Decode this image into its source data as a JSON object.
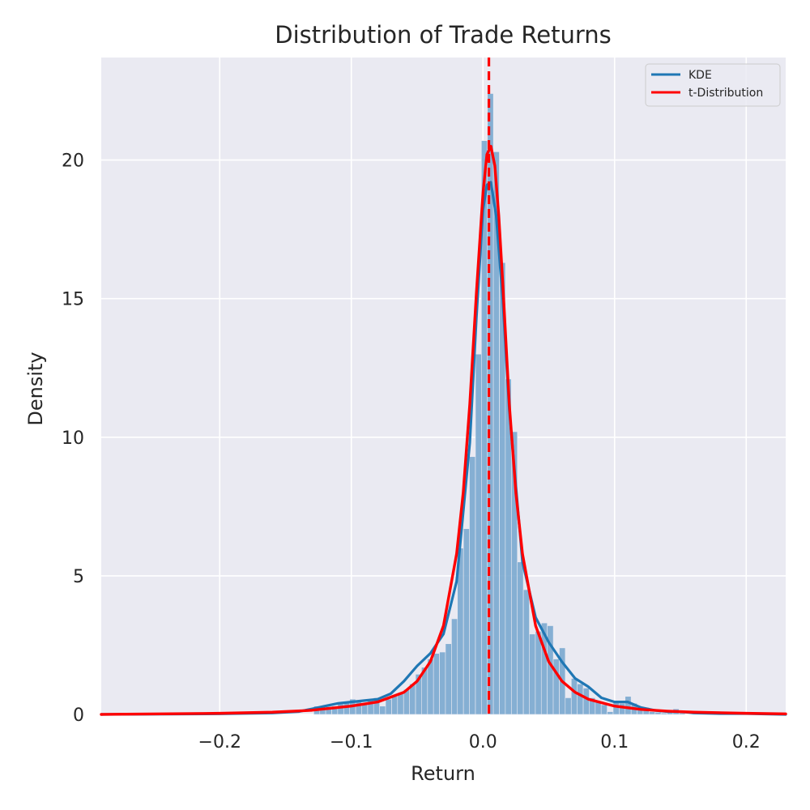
{
  "chart_data": {
    "type": "bar",
    "title": "Distribution of Trade Returns",
    "xlabel": "Return",
    "ylabel": "Density",
    "xlim": [
      -0.29,
      0.23
    ],
    "ylim": [
      0,
      23.7
    ],
    "x_ticks": [
      -0.2,
      -0.1,
      0.0,
      0.1,
      0.2
    ],
    "x_tick_labels": [
      "−0.2",
      "−0.1",
      "0.0",
      "0.1",
      "0.2"
    ],
    "y_ticks": [
      0,
      5,
      10,
      15,
      20
    ],
    "y_tick_labels": [
      "0",
      "5",
      "10",
      "15",
      "20"
    ],
    "grid": true,
    "legend_position": "top-right",
    "histogram": {
      "bin_width": 0.00455,
      "bins": [
        [
          -0.1285,
          0.3
        ],
        [
          -0.124,
          0.25
        ],
        [
          -0.1195,
          0.28
        ],
        [
          -0.1149,
          0.3
        ],
        [
          -0.1104,
          0.38
        ],
        [
          -0.1058,
          0.42
        ],
        [
          -0.1013,
          0.55
        ],
        [
          -0.0967,
          0.5
        ],
        [
          -0.0922,
          0.42
        ],
        [
          -0.0876,
          0.55
        ],
        [
          -0.0831,
          0.6
        ],
        [
          -0.0785,
          0.3
        ],
        [
          -0.074,
          0.55
        ],
        [
          -0.0694,
          0.65
        ],
        [
          -0.0649,
          0.75
        ],
        [
          -0.0603,
          0.9
        ],
        [
          -0.0558,
          1.1
        ],
        [
          -0.0512,
          1.45
        ],
        [
          -0.0467,
          1.7
        ],
        [
          -0.0421,
          2.0
        ],
        [
          -0.0376,
          2.2
        ],
        [
          -0.033,
          2.25
        ],
        [
          -0.0285,
          2.55
        ],
        [
          -0.0239,
          3.45
        ],
        [
          -0.0194,
          6.0
        ],
        [
          -0.0148,
          6.7
        ],
        [
          -0.0103,
          9.3
        ],
        [
          -0.0057,
          13.0
        ],
        [
          -0.0012,
          20.7
        ],
        [
          0.0034,
          22.4
        ],
        [
          0.0079,
          20.3
        ],
        [
          0.0125,
          16.3
        ],
        [
          0.017,
          12.1
        ],
        [
          0.0216,
          10.2
        ],
        [
          0.0261,
          5.5
        ],
        [
          0.0307,
          4.5
        ],
        [
          0.0352,
          2.9
        ],
        [
          0.0398,
          3.0
        ],
        [
          0.0443,
          3.3
        ],
        [
          0.0489,
          3.2
        ],
        [
          0.0534,
          2.0
        ],
        [
          0.058,
          2.4
        ],
        [
          0.0625,
          0.6
        ],
        [
          0.0671,
          1.3
        ],
        [
          0.0716,
          1.1
        ],
        [
          0.0762,
          0.95
        ],
        [
          0.0807,
          0.6
        ],
        [
          0.0853,
          0.45
        ],
        [
          0.0898,
          0.35
        ],
        [
          0.0944,
          0.1
        ],
        [
          0.0989,
          0.45
        ],
        [
          0.1035,
          0.4
        ],
        [
          0.108,
          0.65
        ],
        [
          0.1126,
          0.4
        ],
        [
          0.1171,
          0.25
        ],
        [
          0.1217,
          0.25
        ],
        [
          0.1262,
          0.1
        ],
        [
          0.1308,
          0.08
        ],
        [
          0.1353,
          0.05
        ],
        [
          0.1399,
          0.15
        ],
        [
          0.1444,
          0.2
        ],
        [
          0.149,
          0.05
        ]
      ]
    },
    "series": [
      {
        "name": "KDE",
        "color": "#1f77b4",
        "x": [
          -0.29,
          -0.2,
          -0.16,
          -0.14,
          -0.13,
          -0.12,
          -0.11,
          -0.1,
          -0.09,
          -0.08,
          -0.07,
          -0.06,
          -0.05,
          -0.04,
          -0.03,
          -0.02,
          -0.01,
          -0.005,
          0.0,
          0.003,
          0.006,
          0.01,
          0.015,
          0.02,
          0.03,
          0.04,
          0.05,
          0.06,
          0.07,
          0.08,
          0.09,
          0.1,
          0.11,
          0.12,
          0.13,
          0.14,
          0.15,
          0.16,
          0.18,
          0.2,
          0.23
        ],
        "y": [
          0.0,
          0.02,
          0.05,
          0.1,
          0.2,
          0.3,
          0.4,
          0.45,
          0.5,
          0.55,
          0.75,
          1.2,
          1.75,
          2.2,
          2.9,
          4.8,
          9.8,
          14.3,
          18.2,
          19.1,
          19.2,
          18.0,
          15.0,
          11.0,
          5.5,
          3.5,
          2.6,
          1.9,
          1.3,
          1.0,
          0.6,
          0.45,
          0.45,
          0.25,
          0.15,
          0.1,
          0.1,
          0.05,
          0.03,
          0.03,
          0.0
        ]
      },
      {
        "name": "t-Distribution",
        "color": "#ff0000",
        "x": [
          -0.29,
          -0.2,
          -0.16,
          -0.13,
          -0.1,
          -0.08,
          -0.06,
          -0.05,
          -0.04,
          -0.03,
          -0.02,
          -0.015,
          -0.01,
          -0.005,
          0.0,
          0.003,
          0.006,
          0.009,
          0.012,
          0.015,
          0.02,
          0.025,
          0.03,
          0.04,
          0.05,
          0.06,
          0.07,
          0.08,
          0.1,
          0.12,
          0.14,
          0.16,
          0.2,
          0.23
        ],
        "y": [
          0.0,
          0.04,
          0.08,
          0.15,
          0.3,
          0.45,
          0.8,
          1.2,
          1.9,
          3.2,
          5.8,
          8.0,
          11.2,
          15.2,
          18.8,
          20.2,
          20.5,
          19.8,
          18.0,
          15.6,
          11.2,
          8.0,
          5.8,
          3.2,
          1.9,
          1.2,
          0.8,
          0.55,
          0.3,
          0.18,
          0.12,
          0.08,
          0.04,
          0.02
        ]
      }
    ],
    "vline": {
      "x": 0.0045,
      "color": "#ff0000",
      "style": "dashed"
    }
  }
}
